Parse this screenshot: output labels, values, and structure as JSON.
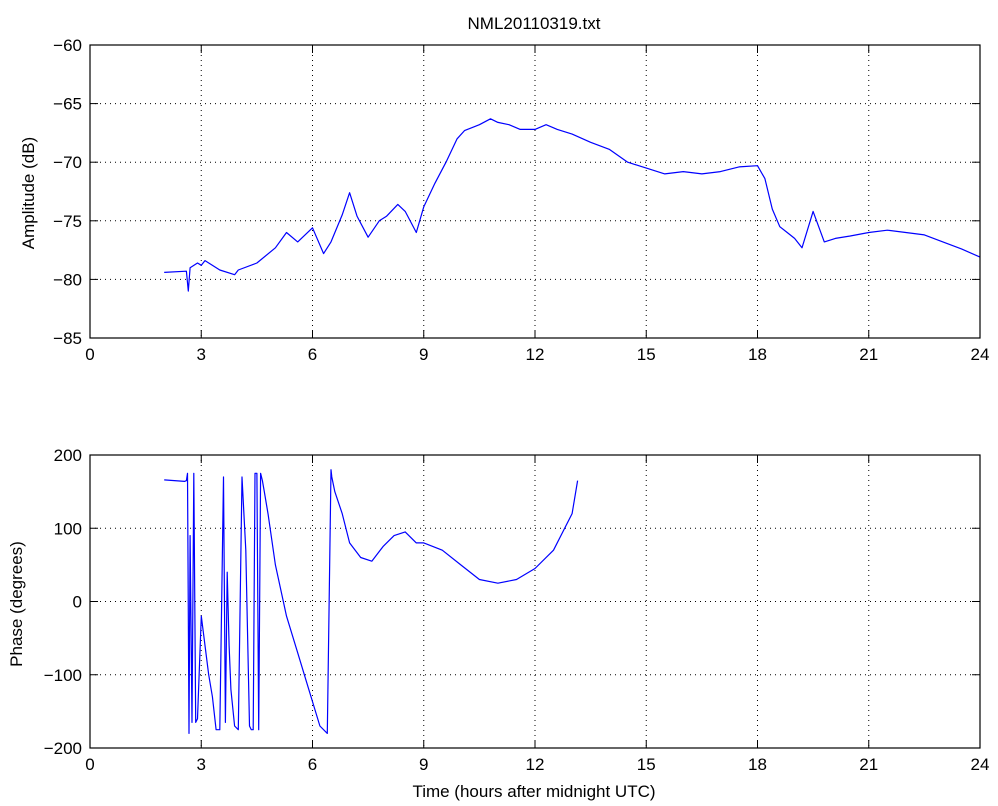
{
  "chart_data": [
    {
      "type": "line",
      "title": "NML20110319.txt",
      "xlabel": "",
      "ylabel": "Amplitude (dB)",
      "xlim": [
        0,
        24
      ],
      "ylim": [
        -85,
        -60
      ],
      "xticks": [
        0,
        3,
        6,
        9,
        12,
        15,
        18,
        21,
        24
      ],
      "yticks": [
        -60,
        -65,
        -70,
        -75,
        -80,
        -85
      ],
      "grid": true,
      "series_color": "#0000ff",
      "series": [
        {
          "x": [
            2.0,
            2.6,
            2.65,
            2.7,
            2.9,
            3.0,
            3.1,
            3.5,
            3.9,
            4.0,
            4.5,
            5.0,
            5.3,
            5.6,
            6.0,
            6.3,
            6.5,
            6.8,
            7.0,
            7.2,
            7.5,
            7.8,
            8.0,
            8.3,
            8.5,
            8.8,
            9.0,
            9.3,
            9.6,
            9.9,
            10.1,
            10.5,
            10.8,
            11.0,
            11.3,
            11.6,
            12.0,
            12.3,
            12.6,
            13.0,
            13.5,
            14.0,
            14.5,
            15.0,
            15.5,
            16.0,
            16.5,
            17.0,
            17.5,
            18.0,
            18.2,
            18.4,
            18.6,
            18.8,
            19.0,
            19.2,
            19.5,
            19.8,
            20.1,
            20.5,
            21.0,
            21.5,
            22.0,
            22.5,
            23.0,
            23.5,
            24.0
          ],
          "y": [
            -79.4,
            -79.3,
            -81.0,
            -79.0,
            -78.6,
            -78.8,
            -78.4,
            -79.2,
            -79.6,
            -79.2,
            -78.6,
            -77.3,
            -76.0,
            -76.8,
            -75.6,
            -77.8,
            -76.8,
            -74.5,
            -72.6,
            -74.6,
            -76.4,
            -75.0,
            -74.6,
            -73.6,
            -74.2,
            -76.0,
            -73.8,
            -71.8,
            -70.0,
            -68.0,
            -67.3,
            -66.8,
            -66.3,
            -66.6,
            -66.8,
            -67.2,
            -67.2,
            -66.8,
            -67.2,
            -67.6,
            -68.3,
            -68.9,
            -70.0,
            -70.5,
            -71.0,
            -70.8,
            -71.0,
            -70.8,
            -70.4,
            -70.3,
            -71.4,
            -74.0,
            -75.5,
            -76.0,
            -76.5,
            -77.3,
            -74.2,
            -76.8,
            -76.5,
            -76.3,
            -76.0,
            -75.8,
            -76.0,
            -76.2,
            -76.8,
            -77.4,
            -78.1
          ]
        }
      ]
    },
    {
      "type": "line",
      "title": "",
      "xlabel": "Time (hours after midnight UTC)",
      "ylabel": "Phase (degrees)",
      "xlim": [
        0,
        24
      ],
      "ylim": [
        -200,
        200
      ],
      "xticks": [
        0,
        3,
        6,
        9,
        12,
        15,
        18,
        21,
        24
      ],
      "yticks": [
        200,
        100,
        0,
        -100,
        -200
      ],
      "grid": true,
      "series_color": "#0000ff",
      "series": [
        {
          "x": [
            2.0,
            2.55,
            2.6,
            2.63,
            2.67,
            2.7,
            2.75,
            2.8,
            2.85,
            2.9,
            3.0,
            3.1,
            3.2,
            3.3,
            3.4,
            3.5,
            3.6,
            3.65,
            3.7,
            3.75,
            3.8,
            3.9,
            4.0,
            4.1,
            4.2,
            4.3,
            4.35,
            4.4,
            4.45,
            4.5,
            4.55,
            4.6,
            4.65,
            4.7,
            4.8,
            5.0,
            5.3,
            5.6,
            5.9,
            6.2,
            6.4,
            6.5,
            6.52,
            6.6,
            6.8,
            7.0,
            7.3,
            7.6,
            7.9,
            8.2,
            8.5,
            8.8,
            9.0,
            9.5,
            10.0,
            10.5,
            11.0,
            11.5,
            12.0,
            12.5,
            13.0,
            13.15
          ],
          "y": [
            166,
            164,
            165,
            175,
            -180,
            90,
            -165,
            175,
            -165,
            -160,
            -20,
            -60,
            -100,
            -130,
            -175,
            -175,
            170,
            -165,
            40,
            -60,
            -120,
            -170,
            -175,
            170,
            70,
            -170,
            -175,
            -175,
            175,
            175,
            -175,
            175,
            165,
            150,
            120,
            50,
            -20,
            -70,
            -120,
            -170,
            -180,
            180,
            170,
            150,
            120,
            80,
            60,
            55,
            75,
            90,
            95,
            80,
            80,
            70,
            50,
            30,
            25,
            30,
            45,
            70,
            120,
            165
          ]
        }
      ]
    }
  ]
}
